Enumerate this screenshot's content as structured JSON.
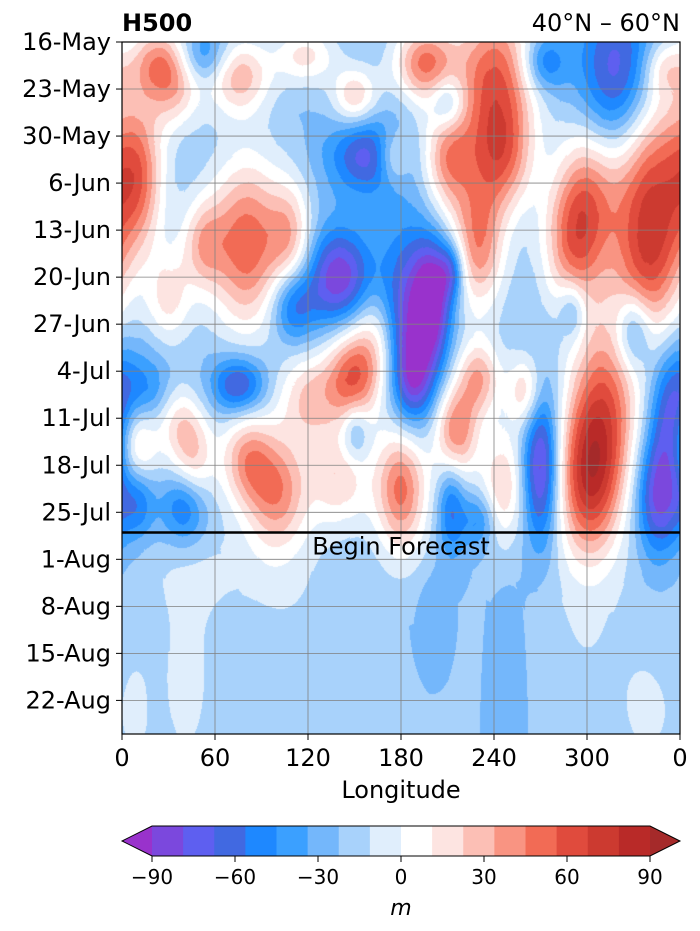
{
  "chart_data": {
    "type": "heatmap",
    "title_left": "H500",
    "title_right": "40°N – 60°N",
    "xlabel": "Longitude",
    "x_ticks": [
      "0",
      "60",
      "120",
      "180",
      "240",
      "300",
      "0"
    ],
    "xlim": [
      0,
      360
    ],
    "y_ticks": [
      "16-May",
      "23-May",
      "30-May",
      "6-Jun",
      "13-Jun",
      "20-Jun",
      "27-Jun",
      "4-Jul",
      "11-Jul",
      "18-Jul",
      "25-Jul",
      "1-Aug",
      "8-Aug",
      "15-Aug",
      "22-Aug"
    ],
    "y_start_date": "16-May",
    "y_end_date": "27-Aug",
    "forecast_date": "28-Jul",
    "forecast_label": "Begin Forecast",
    "grid": true,
    "colorbar": {
      "label": "m",
      "ticks": [
        "−90",
        "−60",
        "−30",
        "0",
        "30",
        "60",
        "90"
      ],
      "range": [
        -105,
        105
      ],
      "step": 15,
      "extend": "both",
      "colors": [
        "#9932cc",
        "#7b48dd",
        "#5e5ff0",
        "#4169e1",
        "#1e88ff",
        "#3ba0ff",
        "#74b7fb",
        "#a8d2fb",
        "#e0eefc",
        "#ffffff",
        "#fde4e1",
        "#fcbfb5",
        "#f99482",
        "#f26b55",
        "#e04b3d",
        "#cc3a30",
        "#b92a28",
        "#a52a2a"
      ]
    },
    "blobs": [
      {
        "lon": 25,
        "day": 3,
        "value": 80,
        "r_lon": 14,
        "r_day": 4
      },
      {
        "lon": 52,
        "day": 2,
        "value": -45,
        "r_lon": 12,
        "r_day": 3
      },
      {
        "lon": 75,
        "day": 5,
        "value": 70,
        "r_lon": 14,
        "r_day": 4
      },
      {
        "lon": 118,
        "day": 2,
        "value": 50,
        "r_lon": 14,
        "r_day": 3
      },
      {
        "lon": 150,
        "day": 8,
        "value": 60,
        "r_lon": 10,
        "r_day": 3
      },
      {
        "lon": 195,
        "day": 3,
        "value": 90,
        "r_lon": 14,
        "r_day": 4
      },
      {
        "lon": 240,
        "day": 5,
        "value": 100,
        "r_lon": 18,
        "r_day": 8
      },
      {
        "lon": 272,
        "day": 3,
        "value": -50,
        "r_lon": 10,
        "r_day": 3
      },
      {
        "lon": 320,
        "day": 6,
        "value": -85,
        "r_lon": 18,
        "r_day": 9
      },
      {
        "lon": 350,
        "day": 4,
        "value": 40,
        "r_lon": 10,
        "r_day": 3
      },
      {
        "lon": 10,
        "day": 20,
        "value": 80,
        "r_lon": 12,
        "r_day": 8
      },
      {
        "lon": 35,
        "day": 8,
        "value": 40,
        "r_lon": 12,
        "r_day": 4
      },
      {
        "lon": 160,
        "day": 17,
        "value": -70,
        "r_lon": 18,
        "r_day": 4
      },
      {
        "lon": 175,
        "day": 17,
        "value": 60,
        "r_lon": 8,
        "r_day": 3
      },
      {
        "lon": 210,
        "day": 17,
        "value": 80,
        "r_lon": 12,
        "r_day": 6
      },
      {
        "lon": 300,
        "day": 22,
        "value": 70,
        "r_lon": 14,
        "r_day": 8
      },
      {
        "lon": 340,
        "day": 18,
        "value": 90,
        "r_lon": 20,
        "r_day": 10
      },
      {
        "lon": 245,
        "day": 17,
        "value": 80,
        "r_lon": 14,
        "r_day": 6
      },
      {
        "lon": 210,
        "day": 9,
        "value": -50,
        "r_lon": 8,
        "r_day": 3
      },
      {
        "lon": 80,
        "day": 30,
        "value": 100,
        "r_lon": 16,
        "r_day": 9
      },
      {
        "lon": 108,
        "day": 29,
        "value": 60,
        "r_lon": 10,
        "r_day": 6
      },
      {
        "lon": 30,
        "day": 38,
        "value": 50,
        "r_lon": 10,
        "r_day": 5
      },
      {
        "lon": 52,
        "day": 30,
        "value": 60,
        "r_lon": 10,
        "r_day": 5
      },
      {
        "lon": 140,
        "day": 35,
        "value": -90,
        "r_lon": 14,
        "r_day": 5
      },
      {
        "lon": 110,
        "day": 39,
        "value": -60,
        "r_lon": 10,
        "r_day": 4
      },
      {
        "lon": 185,
        "day": 43,
        "value": -95,
        "r_lon": 14,
        "r_day": 10
      },
      {
        "lon": 200,
        "day": 38,
        "value": -80,
        "r_lon": 8,
        "r_day": 6
      },
      {
        "lon": 165,
        "day": 45,
        "value": 60,
        "r_lon": 12,
        "r_day": 6
      },
      {
        "lon": 212,
        "day": 34,
        "value": -60,
        "r_lon": 6,
        "r_day": 3
      },
      {
        "lon": 230,
        "day": 30,
        "value": 85,
        "r_lon": 12,
        "r_day": 7
      },
      {
        "lon": 290,
        "day": 30,
        "value": 75,
        "r_lon": 14,
        "r_day": 7
      },
      {
        "lon": 340,
        "day": 33,
        "value": 90,
        "r_lon": 16,
        "r_day": 9
      },
      {
        "lon": 330,
        "day": 43,
        "value": -60,
        "r_lon": 8,
        "r_day": 4
      },
      {
        "lon": 290,
        "day": 40,
        "value": -40,
        "r_lon": 6,
        "r_day": 3
      },
      {
        "lon": 75,
        "day": 51,
        "value": -70,
        "r_lon": 12,
        "r_day": 3
      },
      {
        "lon": 15,
        "day": 52,
        "value": -40,
        "r_lon": 12,
        "r_day": 4
      },
      {
        "lon": 120,
        "day": 53,
        "value": 60,
        "r_lon": 14,
        "r_day": 5
      },
      {
        "lon": 148,
        "day": 50,
        "value": 90,
        "r_lon": 12,
        "r_day": 5
      },
      {
        "lon": 188,
        "day": 50,
        "value": -40,
        "r_lon": 8,
        "r_day": 4
      },
      {
        "lon": 215,
        "day": 58,
        "value": 90,
        "r_lon": 10,
        "r_day": 5
      },
      {
        "lon": 230,
        "day": 50,
        "value": 70,
        "r_lon": 10,
        "r_day": 4
      },
      {
        "lon": 260,
        "day": 52,
        "value": 60,
        "r_lon": 8,
        "r_day": 4
      },
      {
        "lon": 310,
        "day": 55,
        "value": 100,
        "r_lon": 16,
        "r_day": 10
      },
      {
        "lon": 355,
        "day": 57,
        "value": -80,
        "r_lon": 10,
        "r_day": 8
      },
      {
        "lon": 35,
        "day": 56,
        "value": 40,
        "r_lon": 10,
        "r_day": 4
      },
      {
        "lon": 8,
        "day": 60,
        "value": 75,
        "r_lon": 10,
        "r_day": 5
      },
      {
        "lon": 45,
        "day": 62,
        "value": 60,
        "r_lon": 10,
        "r_day": 5
      },
      {
        "lon": 80,
        "day": 62,
        "value": 70,
        "r_lon": 12,
        "r_day": 5
      },
      {
        "lon": 40,
        "day": 69,
        "value": -60,
        "r_lon": 10,
        "r_day": 4
      },
      {
        "lon": 10,
        "day": 68,
        "value": -50,
        "r_lon": 8,
        "r_day": 4
      },
      {
        "lon": 100,
        "day": 67,
        "value": 80,
        "r_lon": 14,
        "r_day": 6
      },
      {
        "lon": 140,
        "day": 65,
        "value": 55,
        "r_lon": 14,
        "r_day": 5
      },
      {
        "lon": 150,
        "day": 58,
        "value": -40,
        "r_lon": 6,
        "r_day": 3
      },
      {
        "lon": 180,
        "day": 66,
        "value": 100,
        "r_lon": 12,
        "r_day": 7
      },
      {
        "lon": 212,
        "day": 69,
        "value": -50,
        "r_lon": 6,
        "r_day": 5
      },
      {
        "lon": 245,
        "day": 66,
        "value": 60,
        "r_lon": 10,
        "r_day": 6
      },
      {
        "lon": 270,
        "day": 63,
        "value": -90,
        "r_lon": 8,
        "r_day": 8
      },
      {
        "lon": 300,
        "day": 66,
        "value": 95,
        "r_lon": 14,
        "r_day": 8
      },
      {
        "lon": 345,
        "day": 68,
        "value": -70,
        "r_lon": 10,
        "r_day": 6
      },
      {
        "lon": 230,
        "day": 71,
        "value": -40,
        "r_lon": 8,
        "r_day": 3
      },
      {
        "lon": 40,
        "day": 95,
        "value": 18,
        "r_lon": 16,
        "r_day": 14
      },
      {
        "lon": 8,
        "day": 100,
        "value": 15,
        "r_lon": 8,
        "r_day": 8
      },
      {
        "lon": 110,
        "day": 90,
        "value": 12,
        "r_lon": 30,
        "r_day": 14
      },
      {
        "lon": 250,
        "day": 95,
        "value": -14,
        "r_lon": 8,
        "r_day": 10
      },
      {
        "lon": 300,
        "day": 90,
        "value": 14,
        "r_lon": 30,
        "r_day": 12
      },
      {
        "lon": 340,
        "day": 100,
        "value": 16,
        "r_lon": 12,
        "r_day": 6
      },
      {
        "lon": 200,
        "day": 85,
        "value": -13,
        "r_lon": 6,
        "r_day": 4
      },
      {
        "lon": 60,
        "day": 78,
        "value": 12,
        "r_lon": 40,
        "r_day": 5
      }
    ]
  }
}
